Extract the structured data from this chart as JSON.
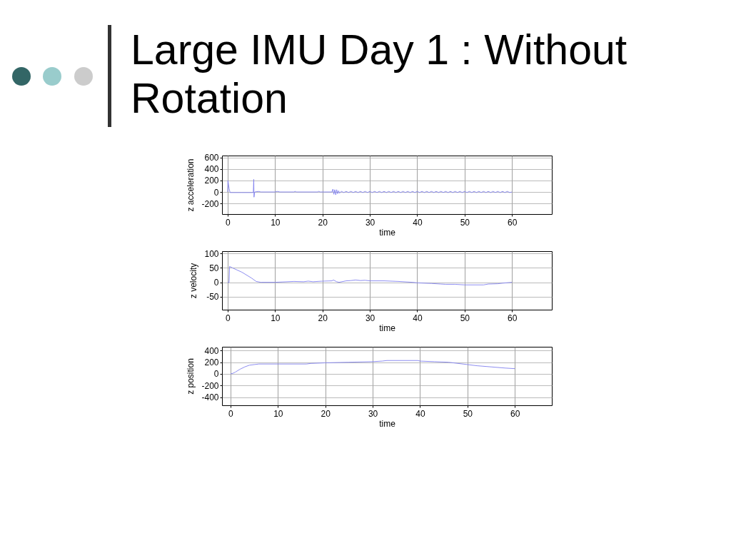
{
  "chart_data": [
    {
      "type": "line",
      "title": "Large IMU Day 1 : Without Rotation",
      "xlabel": "time",
      "ylabel": "z acceleration",
      "color": "#8080ee",
      "x": [
        0,
        0.05,
        0.3,
        0.5,
        3,
        5,
        5.4,
        5.5,
        5.55,
        5.7,
        6.5,
        7,
        10,
        10.5,
        11,
        14,
        14.2,
        14.5,
        19,
        19.2,
        19.5,
        22,
        22.2,
        22.4,
        22.6,
        22.8,
        23,
        23.2,
        23.4,
        23.6,
        24,
        24.5,
        25,
        25.5,
        26,
        26.5,
        27,
        27.5,
        28,
        28.5,
        29,
        29.5,
        30,
        30.5,
        31,
        31.5,
        32,
        32.5,
        33,
        33.5,
        34,
        34.5,
        35,
        35.5,
        36,
        36.5,
        37,
        37.5,
        38,
        38.5,
        39,
        39.5,
        40,
        40.5,
        41,
        41.5,
        42,
        42.5,
        43,
        43.5,
        44,
        44.5,
        45,
        45.5,
        46,
        46.5,
        47,
        47.5,
        48,
        48.5,
        49,
        49.5,
        50,
        50.5,
        51,
        51.5,
        52,
        52.5,
        53,
        53.5,
        54,
        54.5,
        55,
        55.5,
        56,
        56.5,
        57,
        57.5,
        58,
        58.5,
        59,
        59.5,
        60
      ],
      "values": [
        0,
        200,
        60,
        -10,
        -10,
        -10,
        -10,
        220,
        -90,
        0,
        10,
        0,
        0,
        10,
        0,
        0,
        10,
        0,
        0,
        10,
        0,
        0,
        50,
        -40,
        40,
        -50,
        40,
        -30,
        20,
        -20,
        10,
        -10,
        10,
        -10,
        10,
        -10,
        10,
        -10,
        10,
        -10,
        10,
        -10,
        10,
        -10,
        10,
        -10,
        10,
        -10,
        10,
        -10,
        10,
        -10,
        10,
        -10,
        10,
        -10,
        10,
        -10,
        10,
        -10,
        10,
        -10,
        10,
        -10,
        10,
        -10,
        10,
        -10,
        10,
        -10,
        10,
        -10,
        10,
        -10,
        10,
        -10,
        10,
        -10,
        10,
        -10,
        10,
        -10,
        10,
        -10,
        10,
        -10,
        10,
        -10,
        10,
        -10,
        10,
        -10,
        10,
        -10,
        10,
        -10,
        10,
        -10,
        10,
        -10,
        10,
        -10,
        0
      ],
      "xlim": [
        -1.2,
        68.4
      ],
      "ylim": [
        -385,
        635
      ],
      "xticks": [
        0,
        10,
        20,
        30,
        40,
        50,
        60
      ],
      "yticks": [
        -200,
        0,
        200,
        400,
        600
      ],
      "grid": true
    },
    {
      "type": "line",
      "xlabel": "time",
      "ylabel": "z velocity",
      "color": "#8080ee",
      "x": [
        0,
        0.3,
        0.4,
        1,
        3,
        5,
        6,
        7,
        10,
        14,
        16,
        17,
        18,
        20,
        22,
        22.3,
        23,
        23.5,
        25,
        26,
        27,
        28,
        29,
        30,
        33,
        36,
        39,
        40,
        43,
        45,
        46,
        48,
        50,
        54,
        55,
        57,
        58,
        60
      ],
      "values": [
        0,
        0,
        55,
        50,
        35,
        15,
        3,
        0,
        0,
        3,
        2,
        4,
        2,
        4,
        5,
        8,
        2,
        0,
        5,
        6,
        8,
        6,
        7,
        5,
        5,
        3,
        0,
        -2,
        -4,
        -6,
        -7,
        -7,
        -9,
        -9,
        -6,
        -5,
        -3,
        0
      ],
      "xlim": [
        -1.2,
        68.4
      ],
      "ylim": [
        -95,
        108
      ],
      "xticks": [
        0,
        10,
        20,
        30,
        40,
        50,
        60
      ],
      "yticks": [
        -50,
        0,
        50,
        100
      ],
      "grid": true
    },
    {
      "type": "line",
      "xlabel": "time",
      "ylabel": "z position",
      "color": "#8080ee",
      "x": [
        0,
        0.5,
        1,
        2,
        3,
        4,
        5,
        6,
        10,
        16,
        17,
        20,
        25,
        30,
        32,
        33,
        39.5,
        40,
        43,
        46,
        50,
        52,
        55,
        58,
        60
      ],
      "values": [
        0,
        10,
        30,
        80,
        120,
        150,
        160,
        170,
        170,
        170,
        180,
        190,
        200,
        210,
        220,
        230,
        230,
        220,
        210,
        200,
        160,
        140,
        120,
        100,
        90
      ],
      "xlim": [
        -1.8,
        67.8
      ],
      "ylim": [
        -540,
        466
      ],
      "xticks": [
        0,
        10,
        20,
        30,
        40,
        50,
        60
      ],
      "yticks": [
        -400,
        -200,
        0,
        200,
        400
      ],
      "grid": true
    }
  ]
}
